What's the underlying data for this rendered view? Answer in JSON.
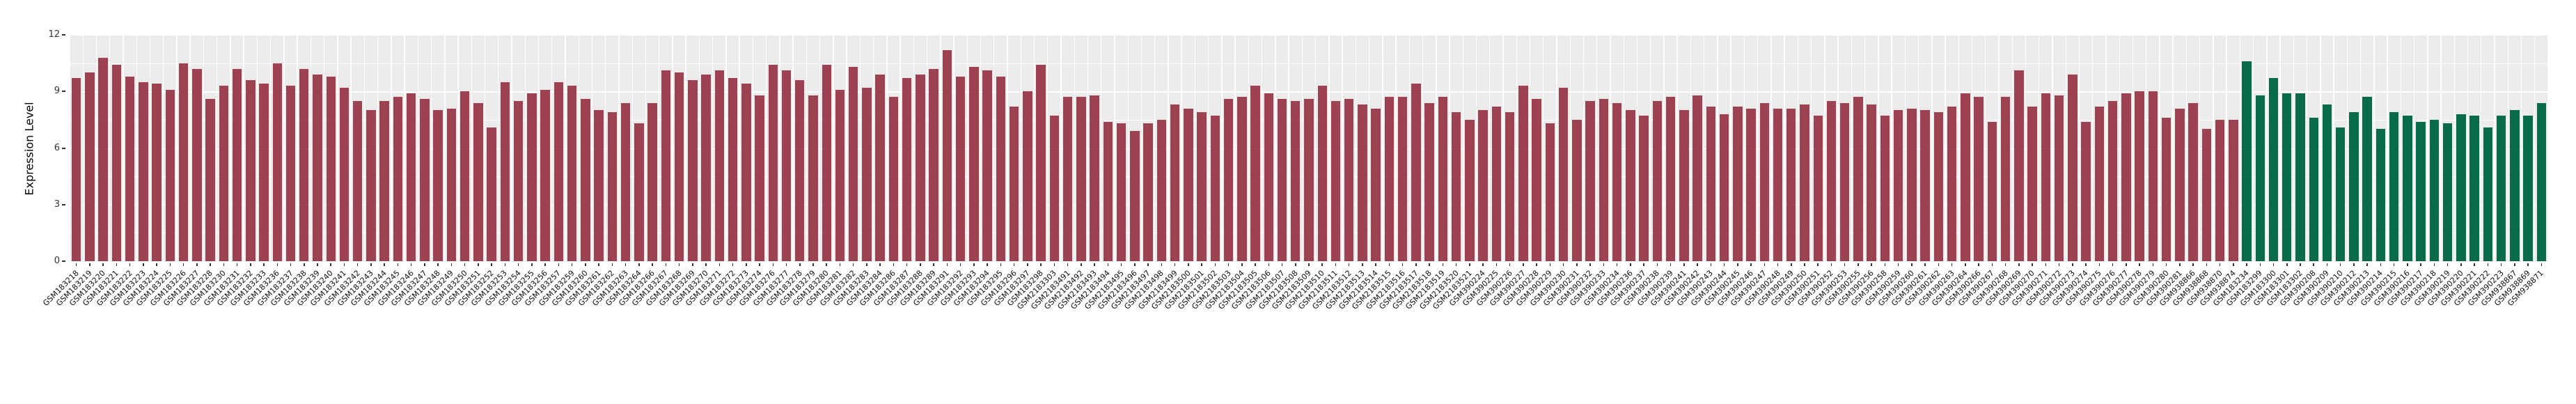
{
  "page": {
    "background": "#ffffff"
  },
  "chart_data": {
    "type": "bar",
    "title": "",
    "ylabel": "Expression Level",
    "xlabel": "",
    "ylim": [
      0,
      12
    ],
    "yticks": [
      0,
      3,
      6,
      9,
      12
    ],
    "legend": "none",
    "grid": "on",
    "panel_bg": "#ebebeb",
    "grid_color": "#ffffff",
    "tick_color": "#333333",
    "bar_color_groups": [
      {
        "name": "red-group",
        "color": "#9d4251",
        "start": 0,
        "count": 162
      },
      {
        "name": "green-group",
        "color": "#076b48",
        "start": 162,
        "count": 23
      }
    ],
    "categories": [
      "GSM183218",
      "GSM183219",
      "GSM183220",
      "GSM183221",
      "GSM183222",
      "GSM183223",
      "GSM183224",
      "GSM183225",
      "GSM183226",
      "GSM183227",
      "GSM183228",
      "GSM183230",
      "GSM183231",
      "GSM183232",
      "GSM183233",
      "GSM183236",
      "GSM183237",
      "GSM183238",
      "GSM183239",
      "GSM183240",
      "GSM183241",
      "GSM183242",
      "GSM183243",
      "GSM183244",
      "GSM183245",
      "GSM183246",
      "GSM183247",
      "GSM183248",
      "GSM183249",
      "GSM183250",
      "GSM183251",
      "GSM183252",
      "GSM183253",
      "GSM183254",
      "GSM183255",
      "GSM183256",
      "GSM183257",
      "GSM183259",
      "GSM183260",
      "GSM183261",
      "GSM183262",
      "GSM183263",
      "GSM183264",
      "GSM183266",
      "GSM183267",
      "GSM183268",
      "GSM183269",
      "GSM183270",
      "GSM183271",
      "GSM183272",
      "GSM183273",
      "GSM183274",
      "GSM183276",
      "GSM183277",
      "GSM183278",
      "GSM183279",
      "GSM183280",
      "GSM183281",
      "GSM183282",
      "GSM183283",
      "GSM183284",
      "GSM183286",
      "GSM183287",
      "GSM183288",
      "GSM183289",
      "GSM183291",
      "GSM183292",
      "GSM183293",
      "GSM183294",
      "GSM183295",
      "GSM183296",
      "GSM183297",
      "GSM183298",
      "GSM2183303",
      "GSM2183491",
      "GSM2183492",
      "GSM2183493",
      "GSM2183494",
      "GSM2183495",
      "GSM2183496",
      "GSM2183497",
      "GSM2183498",
      "GSM2183499",
      "GSM2183500",
      "GSM2183501",
      "GSM2183502",
      "GSM2183503",
      "GSM2183504",
      "GSM2183505",
      "GSM2183506",
      "GSM2183507",
      "GSM2183508",
      "GSM2183509",
      "GSM2183510",
      "GSM2183511",
      "GSM2183512",
      "GSM2183513",
      "GSM2183514",
      "GSM2183515",
      "GSM2183516",
      "GSM2183517",
      "GSM2183518",
      "GSM2183519",
      "GSM2183520",
      "GSM2183521",
      "GSM390224",
      "GSM390225",
      "GSM390226",
      "GSM390227",
      "GSM390228",
      "GSM390229",
      "GSM390230",
      "GSM390231",
      "GSM390232",
      "GSM390233",
      "GSM390234",
      "GSM390236",
      "GSM390237",
      "GSM390238",
      "GSM390239",
      "GSM390241",
      "GSM390242",
      "GSM390243",
      "GSM390244",
      "GSM390245",
      "GSM390246",
      "GSM390247",
      "GSM390248",
      "GSM390249",
      "GSM390250",
      "GSM390251",
      "GSM390252",
      "GSM390253",
      "GSM390255",
      "GSM390256",
      "GSM390258",
      "GSM390259",
      "GSM390260",
      "GSM390261",
      "GSM390262",
      "GSM390263",
      "GSM390264",
      "GSM390266",
      "GSM390267",
      "GSM390268",
      "GSM390269",
      "GSM390270",
      "GSM390271",
      "GSM390272",
      "GSM390273",
      "GSM390274",
      "GSM390275",
      "GSM390276",
      "GSM390277",
      "GSM390278",
      "GSM390279",
      "GSM390280",
      "GSM390281",
      "GSM938866",
      "GSM938868",
      "GSM938870",
      "GSM938874",
      "GSM183234",
      "GSM183299",
      "GSM183300",
      "GSM183301",
      "GSM183302",
      "GSM390208",
      "GSM390209",
      "GSM390210",
      "GSM390212",
      "GSM390213",
      "GSM390214",
      "GSM390215",
      "GSM390216",
      "GSM390217",
      "GSM390218",
      "GSM390219",
      "GSM390220",
      "GSM390221",
      "GSM390222",
      "GSM390223",
      "GSM938867",
      "GSM938869",
      "GSM938871"
    ],
    "values": [
      9.7,
      10.0,
      10.8,
      10.4,
      9.8,
      9.5,
      9.4,
      9.1,
      10.5,
      10.2,
      8.6,
      9.3,
      10.2,
      9.6,
      9.4,
      10.5,
      9.3,
      10.2,
      9.9,
      9.8,
      9.2,
      8.5,
      8.0,
      8.5,
      8.7,
      8.9,
      8.6,
      8.0,
      8.1,
      9.0,
      8.4,
      7.1,
      9.5,
      8.5,
      8.9,
      9.1,
      9.5,
      9.3,
      8.6,
      8.0,
      7.9,
      8.4,
      7.3,
      8.4,
      10.1,
      10.0,
      9.6,
      9.9,
      10.1,
      9.7,
      9.4,
      8.8,
      10.4,
      10.1,
      9.6,
      8.8,
      10.4,
      9.1,
      10.3,
      9.2,
      9.9,
      8.7,
      9.7,
      9.9,
      10.2,
      11.2,
      9.8,
      10.3,
      10.1,
      9.8,
      8.2,
      9.0,
      10.4,
      7.7,
      8.7,
      8.7,
      8.8,
      7.4,
      7.3,
      6.9,
      7.3,
      7.5,
      8.3,
      8.1,
      7.9,
      7.7,
      8.6,
      8.7,
      9.3,
      8.9,
      8.6,
      8.5,
      8.6,
      9.3,
      8.5,
      8.6,
      8.3,
      8.1,
      8.7,
      8.7,
      9.4,
      8.4,
      8.7,
      7.9,
      7.5,
      8.0,
      8.2,
      7.9,
      9.3,
      8.6,
      7.3,
      9.2,
      7.5,
      8.5,
      8.6,
      8.4,
      8.0,
      7.7,
      8.5,
      8.7,
      8.0,
      8.8,
      8.2,
      7.8,
      8.2,
      8.1,
      8.4,
      8.1,
      8.1,
      8.3,
      7.7,
      8.5,
      8.4,
      8.7,
      8.3,
      7.7,
      8.0,
      8.1,
      8.0,
      7.9,
      8.2,
      8.9,
      8.7,
      7.4,
      8.7,
      10.1,
      8.2,
      8.9,
      8.8,
      9.9,
      7.4,
      8.2,
      8.5,
      8.9,
      9.0,
      9.0,
      7.6,
      8.1,
      8.4,
      7.0,
      7.5,
      7.5,
      10.6,
      8.8,
      9.7,
      8.9,
      8.9,
      7.6,
      8.3,
      7.1,
      7.9,
      8.7,
      7.0,
      7.9,
      7.7,
      7.4,
      7.5,
      7.3,
      7.8,
      7.7,
      7.1,
      7.7,
      8.0,
      7.7,
      8.4
    ]
  }
}
